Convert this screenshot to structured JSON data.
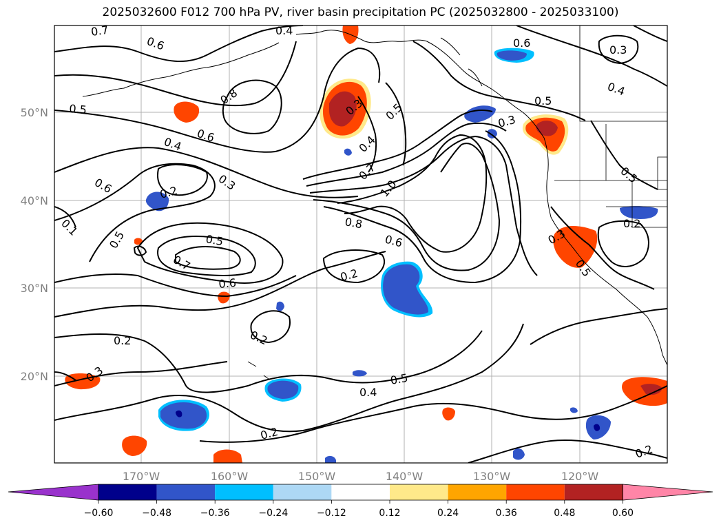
{
  "title": "2025032600 F012 700 hPa PV, river basin precipitation PC (2025032800 - 2025033100)",
  "axes": {
    "lat_labels": [
      "50°N",
      "40°N",
      "30°N",
      "20°N"
    ],
    "lon_labels": [
      "170°W",
      "160°W",
      "150°W",
      "140°W",
      "130°W",
      "120°W"
    ]
  },
  "contour_labels": [
    "0.7",
    "0.6",
    "0.4",
    "0.5",
    "0.3",
    "0.8",
    "0.5",
    "0.6",
    "0.4",
    "0.3",
    "0.4",
    "0.7",
    "0.5",
    "0.3",
    "0.5",
    "1.0",
    "0.6",
    "0.2",
    "0.3",
    "0.5",
    "0.8",
    "0.6",
    "0.5",
    "0.7",
    "0.6",
    "0.2",
    "0.2",
    "0.2",
    "0.3",
    "0.5",
    "0.4",
    "0.2",
    "0.2",
    "0.4",
    "0.3",
    "0.2",
    "0.1",
    "0.5",
    "0.6"
  ],
  "colorbar": {
    "ticks": [
      "−0.60",
      "−0.48",
      "−0.36",
      "−0.24",
      "−0.12",
      "0.12",
      "0.24",
      "0.36",
      "0.48",
      "0.60"
    ],
    "colors": {
      "below": "#9932cc",
      "bins": [
        "#00008b",
        "#3155c9",
        "#00bfff",
        "#add8f5",
        "#ffffff",
        "#ffe98a",
        "#ffa500",
        "#ff4500",
        "#b22222",
        "#ff85a7"
      ],
      "above": "#ff85a7"
    }
  }
}
